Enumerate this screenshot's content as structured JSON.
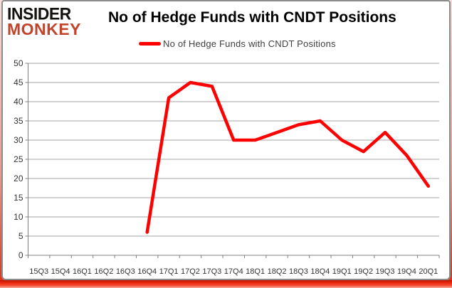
{
  "logo": {
    "line1": "INSIDER",
    "line2": "MONKEY"
  },
  "header": {
    "title": "No of Hedge Funds with CNDT Positions"
  },
  "legend": {
    "label": "No of Hedge Funds with CNDT Positions",
    "swatch_color": "#fe0000"
  },
  "colors": {
    "series_red": "#fe0000",
    "logo_red": "#c2442c",
    "grid_gray": "#a6a6a6",
    "axis_gray": "#808080",
    "frame_red": "#ee2a10"
  },
  "chart_data": {
    "type": "line",
    "title": "No of Hedge Funds with CNDT Positions",
    "categories": [
      "15Q3",
      "15Q4",
      "16Q1",
      "16Q2",
      "16Q3",
      "16Q4",
      "17Q1",
      "17Q2",
      "17Q3",
      "17Q4",
      "18Q1",
      "18Q2",
      "18Q3",
      "18Q4",
      "19Q1",
      "19Q2",
      "19Q3",
      "19Q4",
      "20Q1"
    ],
    "series": [
      {
        "name": "No of Hedge Funds with CNDT Positions",
        "color": "#fe0000",
        "values": [
          null,
          null,
          null,
          null,
          null,
          6,
          41,
          45,
          44,
          30,
          30,
          32,
          34,
          35,
          30,
          27,
          32,
          26,
          18
        ]
      }
    ],
    "xlabel": "",
    "ylabel": "",
    "ylim": [
      0,
      50
    ],
    "ytick_step": 5,
    "grid": true,
    "legend_position": "top-center"
  }
}
